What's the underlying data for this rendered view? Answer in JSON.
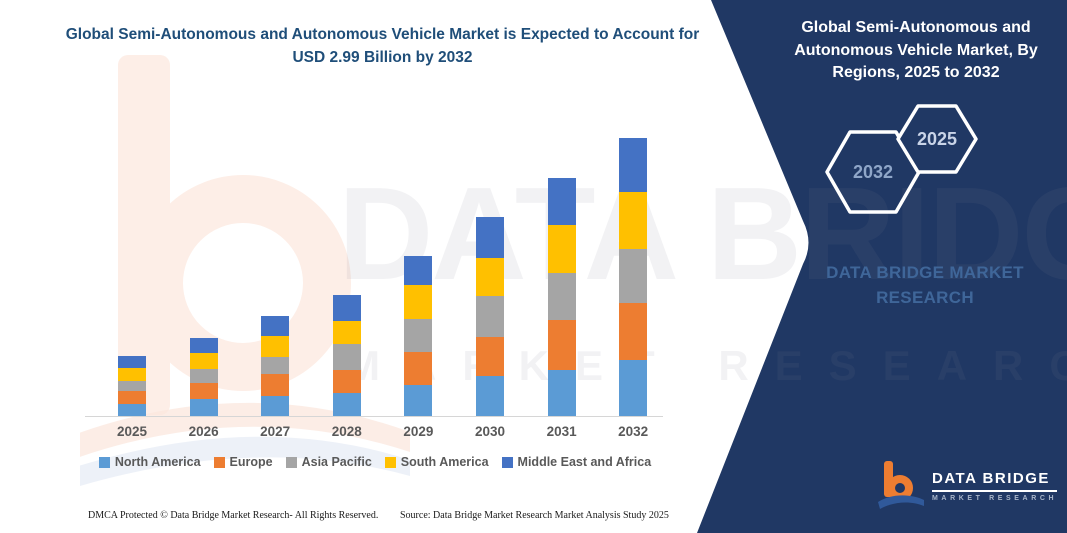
{
  "colors": {
    "panel_navy": "#203864",
    "title_blue": "#1f4e79",
    "label_gray": "#595959",
    "brand_blue": "#3f6699",
    "logo_orange": "#ed7d31",
    "logo_swoosh_blue": "#30599a"
  },
  "header": {
    "title": "Global Semi-Autonomous and Autonomous Vehicle Market is Expected to Account for USD 2.99 Billion by 2032"
  },
  "side_panel": {
    "title": "Global Semi-Autonomous and Autonomous Vehicle Market, By Regions, 2025 to 2032",
    "hexagon_back_label": "2032",
    "hexagon_front_label": "2025",
    "brand_words": "DATA BRIDGE MARKET RESEARCH"
  },
  "watermark": {
    "line1": "DATA BRIDGE",
    "line2": "MARKET RESEARCH"
  },
  "logo": {
    "name": "DATA BRIDGE",
    "subtitle": "MARKET RESEARCH"
  },
  "footer": {
    "left": "DMCA Protected © Data Bridge Market Research-  All Rights Reserved.",
    "right": "Source: Data Bridge Market Research  Market Analysis Study 2025"
  },
  "chart_data": {
    "type": "bar",
    "stacked": true,
    "title": "Global Semi-Autonomous and Autonomous Vehicle Market is Expected to Account for USD 2.99 Billion by 2032",
    "unit": "USD Billion",
    "categories": [
      "2025",
      "2026",
      "2027",
      "2028",
      "2029",
      "2030",
      "2031",
      "2032"
    ],
    "series": [
      {
        "name": "North America",
        "color": "#5b9bd5",
        "values": [
          0.13,
          0.18,
          0.22,
          0.25,
          0.33,
          0.43,
          0.5,
          0.6
        ]
      },
      {
        "name": "Europe",
        "color": "#ed7d31",
        "values": [
          0.14,
          0.18,
          0.23,
          0.25,
          0.36,
          0.42,
          0.53,
          0.61
        ]
      },
      {
        "name": "Asia Pacific",
        "color": "#a5a5a5",
        "values": [
          0.11,
          0.15,
          0.19,
          0.27,
          0.35,
          0.44,
          0.51,
          0.59
        ]
      },
      {
        "name": "South America",
        "color": "#ffc000",
        "values": [
          0.14,
          0.17,
          0.22,
          0.25,
          0.37,
          0.41,
          0.51,
          0.61
        ]
      },
      {
        "name": "Middle East and Africa",
        "color": "#4472c4",
        "values": [
          0.13,
          0.16,
          0.22,
          0.28,
          0.31,
          0.44,
          0.51,
          0.58
        ]
      }
    ],
    "totals": [
      0.65,
      0.84,
      1.08,
      1.3,
      1.72,
      2.14,
      2.56,
      2.99
    ],
    "stack_order_bottom_to_top": [
      "North America",
      "Europe",
      "Asia Pacific",
      "South America",
      "Middle East and Africa"
    ],
    "legend_position": "bottom",
    "ylim": [
      0,
      3.2
    ],
    "grid": false,
    "y_axis_visible": false
  }
}
